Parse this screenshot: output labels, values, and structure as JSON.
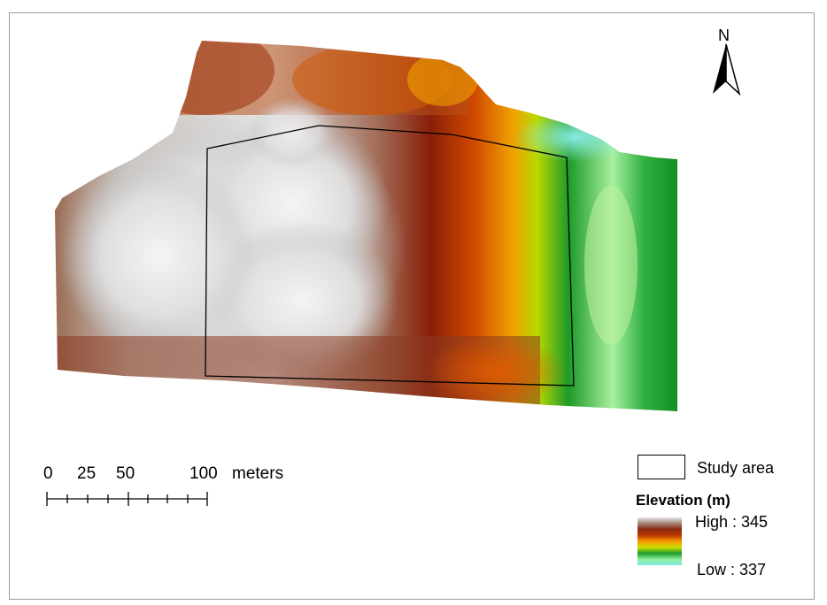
{
  "north_arrow": {
    "label": "N",
    "icon": "north-arrow-icon"
  },
  "scale_bar": {
    "tick_labels": [
      "0",
      "25",
      "50",
      "100"
    ],
    "unit": "meters"
  },
  "legend": {
    "study_area_label": "Study area",
    "elevation_title": "Elevation (m)",
    "high_label": "High : 345",
    "low_label": "Low : 337",
    "ramp_colors": [
      "#e8e8e8",
      "#a08070",
      "#8a2a10",
      "#c03a00",
      "#f59a00",
      "#cde000",
      "#1a9a2a",
      "#90f0a0",
      "#80e8e0"
    ]
  }
}
